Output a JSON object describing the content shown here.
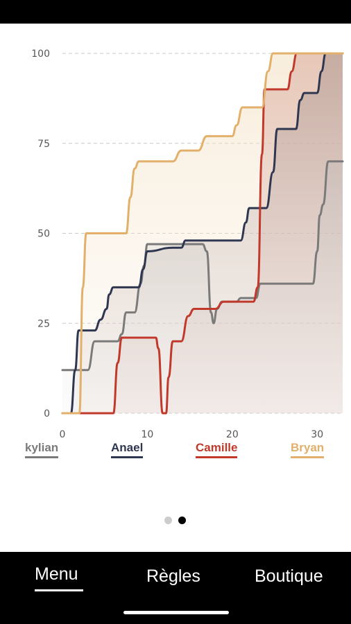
{
  "chart_data": {
    "type": "line",
    "x_ticks": [
      "0",
      "10",
      "20",
      "30"
    ],
    "y_ticks": [
      "0",
      "25",
      "50",
      "75",
      "100"
    ],
    "xlim": [
      0,
      33
    ],
    "ylim": [
      0,
      100
    ],
    "grid": "horizontal dashed",
    "legend_position": "bottom",
    "series": [
      {
        "name": "kylian",
        "color": "#7a7a7a",
        "points": [
          [
            0,
            12
          ],
          [
            3,
            12
          ],
          [
            3.8,
            20
          ],
          [
            6.5,
            20
          ],
          [
            7,
            22
          ],
          [
            7.5,
            28
          ],
          [
            8.5,
            28
          ],
          [
            9.2,
            36
          ],
          [
            9.6,
            41
          ],
          [
            10,
            47
          ],
          [
            16.5,
            47
          ],
          [
            17,
            45
          ],
          [
            17.5,
            28
          ],
          [
            17.8,
            25
          ],
          [
            18.2,
            29
          ],
          [
            18.8,
            31
          ],
          [
            20.5,
            31
          ],
          [
            21,
            32
          ],
          [
            22.8,
            32
          ],
          [
            23.3,
            36
          ],
          [
            29.5,
            36
          ],
          [
            30,
            45
          ],
          [
            30.3,
            55
          ],
          [
            30.7,
            58
          ],
          [
            31.3,
            70
          ],
          [
            33,
            70
          ]
        ]
      },
      {
        "name": "Anael",
        "color": "#2e3650",
        "points": [
          [
            0,
            0
          ],
          [
            1,
            0
          ],
          [
            1.5,
            12
          ],
          [
            1.9,
            23
          ],
          [
            3.8,
            23
          ],
          [
            4.5,
            26
          ],
          [
            5.2,
            29
          ],
          [
            5.5,
            33
          ],
          [
            6,
            35
          ],
          [
            9,
            35
          ],
          [
            9.5,
            40
          ],
          [
            10,
            45
          ],
          [
            13,
            46
          ],
          [
            14,
            46
          ],
          [
            14.5,
            48
          ],
          [
            21,
            48
          ],
          [
            21.6,
            53
          ],
          [
            22,
            57
          ],
          [
            24,
            57
          ],
          [
            24.8,
            67
          ],
          [
            25.3,
            79
          ],
          [
            27.5,
            79
          ],
          [
            28,
            87
          ],
          [
            28.5,
            89
          ],
          [
            30,
            89
          ],
          [
            30.5,
            95
          ],
          [
            31,
            100
          ],
          [
            33,
            100
          ]
        ]
      },
      {
        "name": "Camille",
        "color": "#c0392b",
        "points": [
          [
            0,
            0
          ],
          [
            6,
            0
          ],
          [
            6.5,
            14
          ],
          [
            7,
            21
          ],
          [
            11,
            21
          ],
          [
            11.3,
            18
          ],
          [
            11.8,
            0
          ],
          [
            12.2,
            0
          ],
          [
            12.5,
            10
          ],
          [
            13,
            20
          ],
          [
            14,
            20
          ],
          [
            14.8,
            27
          ],
          [
            15.5,
            29
          ],
          [
            18,
            29
          ],
          [
            19,
            31
          ],
          [
            22.5,
            31
          ],
          [
            23,
            35
          ],
          [
            23.5,
            72
          ],
          [
            23.8,
            90
          ],
          [
            26.5,
            90
          ],
          [
            27,
            95
          ],
          [
            27.6,
            100
          ],
          [
            33,
            100
          ]
        ]
      },
      {
        "name": "Bryan",
        "color": "#e2b06a",
        "points": [
          [
            0,
            0
          ],
          [
            2,
            0
          ],
          [
            2.4,
            35
          ],
          [
            2.8,
            50
          ],
          [
            7.5,
            50
          ],
          [
            8,
            60
          ],
          [
            8.5,
            68
          ],
          [
            9,
            70
          ],
          [
            13,
            70
          ],
          [
            14,
            73
          ],
          [
            16,
            73
          ],
          [
            17,
            77
          ],
          [
            20,
            77
          ],
          [
            20.5,
            80
          ],
          [
            21.2,
            85
          ],
          [
            23.5,
            85
          ],
          [
            24.2,
            95
          ],
          [
            24.8,
            100
          ],
          [
            30,
            100
          ],
          [
            33,
            100
          ]
        ]
      }
    ]
  },
  "pager": {
    "active_index": 1,
    "count": 2
  },
  "nav": {
    "items": [
      {
        "label": "Menu",
        "active": true
      },
      {
        "label": "Règles",
        "active": false
      },
      {
        "label": "Boutique",
        "active": false
      }
    ]
  }
}
